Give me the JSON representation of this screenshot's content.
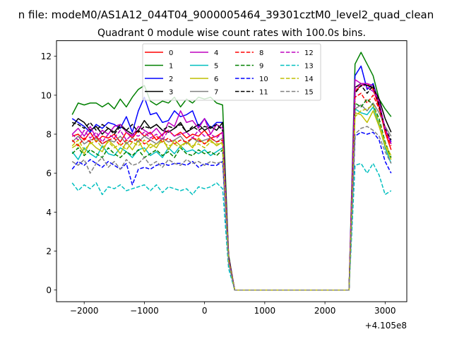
{
  "figure": {
    "suptitle": "n file: modeM0/AS1A12_044T04_9000005464_39301cztM0_level2_quad_clean"
  },
  "chart_data": {
    "type": "line",
    "title": "Quadrant 0 module wise count rates with 100.0s bins.",
    "xlabel": "",
    "ylabel": "",
    "x_offset_label": "+4.105e8",
    "xlim": [
      -2460,
      3360
    ],
    "ylim": [
      -0.6,
      12.8
    ],
    "xticks": [
      -2000,
      -1000,
      0,
      1000,
      2000,
      3000
    ],
    "xtick_labels": [
      "−2000",
      "−1000",
      "0",
      "1000",
      "2000",
      "3000"
    ],
    "yticks": [
      0,
      2,
      4,
      6,
      8,
      10,
      12
    ],
    "ytick_labels": [
      "0",
      "2",
      "4",
      "6",
      "8",
      "10",
      "12"
    ],
    "grid": false,
    "legend": {
      "placement": "top-center",
      "columns": 4
    },
    "x": [
      -2200,
      -2100,
      -2000,
      -1900,
      -1800,
      -1700,
      -1600,
      -1500,
      -1400,
      -1300,
      -1200,
      -1100,
      -1000,
      -900,
      -800,
      -700,
      -600,
      -500,
      -400,
      -300,
      -200,
      -100,
      0,
      100,
      200,
      300,
      400,
      500,
      600,
      700,
      800,
      900,
      1000,
      1100,
      1200,
      1300,
      1400,
      1500,
      1600,
      1700,
      1800,
      1900,
      2000,
      2100,
      2200,
      2300,
      2400,
      2500,
      2600,
      2700,
      2800,
      2900,
      3000,
      3100
    ],
    "series": [
      {
        "name": "0",
        "color": "#ff0000",
        "dash": "solid",
        "values": [
          7.9,
          8.0,
          7.7,
          8.1,
          7.6,
          7.9,
          7.8,
          8.0,
          7.6,
          8.1,
          7.8,
          8.2,
          7.9,
          8.1,
          7.7,
          8.0,
          8.2,
          7.9,
          8.1,
          7.8,
          8.0,
          7.9,
          8.2,
          7.8,
          7.9,
          8.1,
          1.6,
          0,
          0,
          0,
          0,
          0,
          0,
          0,
          0,
          0,
          0,
          0,
          0,
          0,
          0,
          0,
          0,
          0,
          0,
          0,
          0,
          10.2,
          10.5,
          10.6,
          10.3,
          9.4,
          8.1,
          7.2
        ]
      },
      {
        "name": "1",
        "color": "#008000",
        "dash": "solid",
        "values": [
          9.0,
          9.6,
          9.5,
          9.6,
          9.6,
          9.4,
          9.6,
          9.3,
          9.8,
          9.4,
          9.9,
          10.3,
          10.5,
          9.7,
          9.5,
          9.7,
          9.6,
          9.9,
          9.4,
          9.8,
          9.6,
          9.9,
          9.8,
          9.9,
          9.6,
          9.5,
          1.8,
          0,
          0,
          0,
          0,
          0,
          0,
          0,
          0,
          0,
          0,
          0,
          0,
          0,
          0,
          0,
          0,
          0,
          0,
          0,
          0,
          11.6,
          12.2,
          11.6,
          11.0,
          9.8,
          9.3,
          8.9
        ]
      },
      {
        "name": "2",
        "color": "#0000ff",
        "dash": "solid",
        "values": [
          8.8,
          8.6,
          8.4,
          8.1,
          8.5,
          8.3,
          8.6,
          8.5,
          8.3,
          8.9,
          8.1,
          9.2,
          9.9,
          9.0,
          9.1,
          8.6,
          8.7,
          9.2,
          8.9,
          9.0,
          9.2,
          8.4,
          8.8,
          8.3,
          8.6,
          8.6,
          1.7,
          0,
          0,
          0,
          0,
          0,
          0,
          0,
          0,
          0,
          0,
          0,
          0,
          0,
          0,
          0,
          0,
          0,
          0,
          0,
          0,
          11.0,
          11.5,
          10.3,
          10.6,
          9.6,
          8.2,
          7.6
        ]
      },
      {
        "name": "3",
        "color": "#000000",
        "dash": "solid",
        "values": [
          8.4,
          8.8,
          8.6,
          8.2,
          8.4,
          8.0,
          8.3,
          8.1,
          8.5,
          8.2,
          8.0,
          8.2,
          8.7,
          8.3,
          8.5,
          8.2,
          8.1,
          8.3,
          8.6,
          8.1,
          8.3,
          8.5,
          8.2,
          8.4,
          8.2,
          8.6,
          1.7,
          0,
          0,
          0,
          0,
          0,
          0,
          0,
          0,
          0,
          0,
          0,
          0,
          0,
          0,
          0,
          0,
          0,
          0,
          0,
          0,
          10.4,
          10.6,
          10.5,
          10.4,
          9.8,
          8.8,
          8.1
        ]
      },
      {
        "name": "4",
        "color": "#bf00bf",
        "dash": "solid",
        "values": [
          8.0,
          8.3,
          7.9,
          8.4,
          7.8,
          8.2,
          8.0,
          8.4,
          8.5,
          8.1,
          7.9,
          8.4,
          8.2,
          8.0,
          8.3,
          7.9,
          8.6,
          8.4,
          9.2,
          8.6,
          8.7,
          8.3,
          8.8,
          8.0,
          8.5,
          8.3,
          1.7,
          0,
          0,
          0,
          0,
          0,
          0,
          0,
          0,
          0,
          0,
          0,
          0,
          0,
          0,
          0,
          0,
          0,
          0,
          0,
          0,
          10.8,
          10.6,
          10.6,
          10.5,
          9.6,
          8.3,
          7.5
        ]
      },
      {
        "name": "5",
        "color": "#00bfbf",
        "dash": "solid",
        "values": [
          7.1,
          6.7,
          7.3,
          7.0,
          6.8,
          7.4,
          7.0,
          6.9,
          7.3,
          7.1,
          6.8,
          7.2,
          7.3,
          6.9,
          7.1,
          6.8,
          7.3,
          7.0,
          7.4,
          7.1,
          7.2,
          7.0,
          7.2,
          6.9,
          7.1,
          7.3,
          1.5,
          0,
          0,
          0,
          0,
          0,
          0,
          0,
          0,
          0,
          0,
          0,
          0,
          0,
          0,
          0,
          0,
          0,
          0,
          0,
          0,
          9.3,
          9.1,
          9.0,
          9.4,
          8.5,
          7.3,
          6.5
        ]
      },
      {
        "name": "6",
        "color": "#bfbf00",
        "dash": "solid",
        "values": [
          7.3,
          7.5,
          7.0,
          7.6,
          7.3,
          7.1,
          7.7,
          7.4,
          7.0,
          7.6,
          7.2,
          7.7,
          7.1,
          7.5,
          7.3,
          7.8,
          7.2,
          7.7,
          7.4,
          7.6,
          7.3,
          7.8,
          7.5,
          7.7,
          7.4,
          7.6,
          1.6,
          0,
          0,
          0,
          0,
          0,
          0,
          0,
          0,
          0,
          0,
          0,
          0,
          0,
          0,
          0,
          0,
          0,
          0,
          0,
          0,
          9.1,
          9.0,
          8.6,
          9.2,
          8.4,
          7.4,
          6.7
        ]
      },
      {
        "name": "7",
        "color": "#808080",
        "dash": "solid",
        "values": [
          7.6,
          7.9,
          7.5,
          7.7,
          7.8,
          7.5,
          7.7,
          7.6,
          7.9,
          7.5,
          7.8,
          7.6,
          7.9,
          7.7,
          7.5,
          7.8,
          7.6,
          7.7,
          7.9,
          7.5,
          7.8,
          7.6,
          7.7,
          7.8,
          7.6,
          7.8,
          1.6,
          0,
          0,
          0,
          0,
          0,
          0,
          0,
          0,
          0,
          0,
          0,
          0,
          0,
          0,
          0,
          0,
          0,
          0,
          0,
          0,
          9.3,
          9.5,
          9.2,
          9.6,
          9.1,
          8.4,
          7.9
        ]
      },
      {
        "name": "8",
        "color": "#ff0000",
        "dash": "dashed",
        "values": [
          7.7,
          7.4,
          7.8,
          7.6,
          7.9,
          7.5,
          7.7,
          7.8,
          7.4,
          7.7,
          7.6,
          7.8,
          7.5,
          7.7,
          7.9,
          7.6,
          7.8,
          7.5,
          7.7,
          7.6,
          7.8,
          7.7,
          7.5,
          7.8,
          7.6,
          7.7,
          1.6,
          0,
          0,
          0,
          0,
          0,
          0,
          0,
          0,
          0,
          0,
          0,
          0,
          0,
          0,
          0,
          0,
          0,
          0,
          0,
          0,
          9.9,
          10.1,
          9.6,
          10.0,
          9.3,
          8.2,
          7.4
        ]
      },
      {
        "name": "9",
        "color": "#008000",
        "dash": "dashed",
        "values": [
          7.0,
          7.3,
          6.9,
          7.2,
          7.0,
          6.8,
          7.3,
          7.0,
          6.8,
          7.1,
          6.9,
          7.2,
          6.8,
          7.0,
          7.2,
          6.9,
          7.1,
          6.8,
          7.3,
          7.0,
          6.9,
          7.2,
          7.0,
          7.1,
          6.9,
          7.2,
          1.5,
          0,
          0,
          0,
          0,
          0,
          0,
          0,
          0,
          0,
          0,
          0,
          0,
          0,
          0,
          0,
          0,
          0,
          0,
          0,
          0,
          9.6,
          9.4,
          9.8,
          9.5,
          8.8,
          7.6,
          6.8
        ]
      },
      {
        "name": "10",
        "color": "#0000ff",
        "dash": "dashed",
        "values": [
          6.2,
          6.6,
          6.4,
          6.7,
          6.5,
          6.3,
          6.6,
          6.4,
          6.2,
          6.5,
          5.4,
          6.2,
          6.3,
          6.2,
          6.4,
          6.5,
          6.4,
          6.5,
          6.5,
          6.4,
          6.6,
          6.3,
          6.5,
          6.4,
          6.4,
          6.6,
          1.4,
          0,
          0,
          0,
          0,
          0,
          0,
          0,
          0,
          0,
          0,
          0,
          0,
          0,
          0,
          0,
          0,
          0,
          0,
          0,
          0,
          7.9,
          8.1,
          8.0,
          8.1,
          7.7,
          6.6,
          6.0
        ]
      },
      {
        "name": "11",
        "color": "#000000",
        "dash": "dashed",
        "values": [
          8.6,
          8.5,
          8.3,
          8.6,
          8.2,
          8.5,
          8.3,
          8.0,
          8.4,
          8.2,
          8.5,
          8.1,
          8.4,
          8.3,
          8.5,
          8.2,
          8.4,
          8.3,
          8.5,
          8.1,
          8.4,
          8.2,
          8.4,
          8.3,
          8.5,
          8.2,
          1.7,
          0,
          0,
          0,
          0,
          0,
          0,
          0,
          0,
          0,
          0,
          0,
          0,
          0,
          0,
          0,
          0,
          0,
          0,
          0,
          0,
          10.1,
          10.5,
          10.1,
          10.5,
          9.5,
          8.3,
          7.7
        ]
      },
      {
        "name": "12",
        "color": "#bf00bf",
        "dash": "dashed",
        "values": [
          8.0,
          7.7,
          8.2,
          7.8,
          8.1,
          7.6,
          8.0,
          7.8,
          8.2,
          7.7,
          8.0,
          7.9,
          8.1,
          7.8,
          8.0,
          7.7,
          8.2,
          7.9,
          8.0,
          8.1,
          7.8,
          8.2,
          7.9,
          8.0,
          7.8,
          8.1,
          1.6,
          0,
          0,
          0,
          0,
          0,
          0,
          0,
          0,
          0,
          0,
          0,
          0,
          0,
          0,
          0,
          0,
          0,
          0,
          0,
          0,
          10.3,
          10.6,
          10.4,
          10.2,
          9.7,
          8.3,
          7.5
        ]
      },
      {
        "name": "13",
        "color": "#00bfbf",
        "dash": "dashed",
        "values": [
          5.5,
          5.1,
          5.4,
          5.2,
          5.5,
          4.9,
          5.3,
          5.2,
          5.4,
          5.1,
          5.2,
          5.3,
          5.4,
          5.1,
          5.4,
          5.0,
          5.3,
          5.2,
          5.1,
          5.2,
          4.9,
          5.3,
          5.2,
          5.3,
          5.5,
          5.2,
          1.1,
          0,
          0,
          0,
          0,
          0,
          0,
          0,
          0,
          0,
          0,
          0,
          0,
          0,
          0,
          0,
          0,
          0,
          0,
          0,
          0,
          6.4,
          6.5,
          6.0,
          6.5,
          5.9,
          4.9,
          5.1
        ]
      },
      {
        "name": "14",
        "color": "#bfbf00",
        "dash": "dashed",
        "values": [
          7.4,
          7.7,
          7.2,
          7.5,
          7.7,
          7.3,
          7.6,
          7.3,
          7.5,
          7.2,
          7.6,
          7.4,
          7.7,
          7.3,
          7.5,
          7.6,
          7.4,
          7.5,
          7.3,
          7.6,
          7.4,
          7.5,
          7.3,
          7.6,
          7.5,
          7.5,
          1.5,
          0,
          0,
          0,
          0,
          0,
          0,
          0,
          0,
          0,
          0,
          0,
          0,
          0,
          0,
          0,
          0,
          0,
          0,
          0,
          0,
          8.9,
          9.2,
          9.3,
          9.5,
          8.6,
          7.5,
          6.9
        ]
      },
      {
        "name": "15",
        "color": "#808080",
        "dash": "dashed",
        "values": [
          6.6,
          6.4,
          6.7,
          6.0,
          6.5,
          6.8,
          6.3,
          6.6,
          6.2,
          6.7,
          6.4,
          6.5,
          6.8,
          6.4,
          6.6,
          6.3,
          6.7,
          6.5,
          6.4,
          6.7,
          6.5,
          6.6,
          6.4,
          6.6,
          6.5,
          6.6,
          1.4,
          0,
          0,
          0,
          0,
          0,
          0,
          0,
          0,
          0,
          0,
          0,
          0,
          0,
          0,
          0,
          0,
          0,
          0,
          0,
          0,
          8.0,
          8.3,
          8.4,
          8.2,
          7.9,
          7.1,
          6.5
        ]
      }
    ]
  }
}
